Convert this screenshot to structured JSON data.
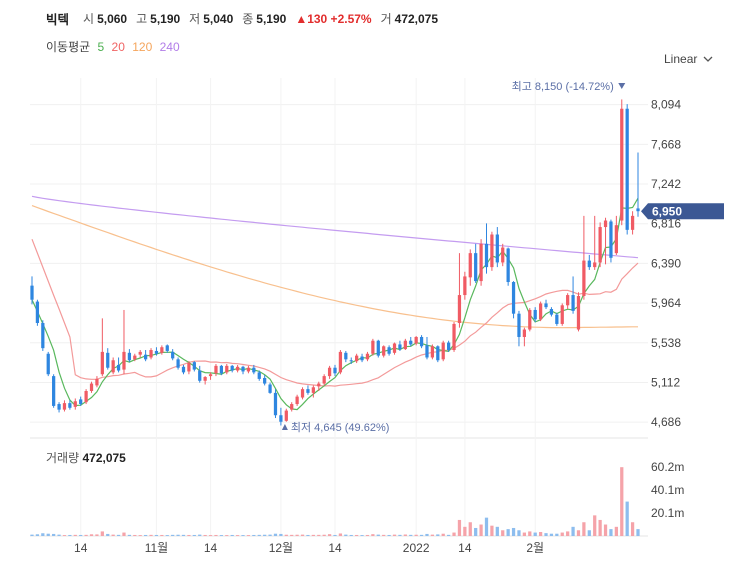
{
  "header": {
    "name": "빅텍",
    "open_label": "시",
    "open": "5,060",
    "high_label": "고",
    "high": "5,190",
    "low_label": "저",
    "low": "5,040",
    "close_label": "종",
    "close": "5,190",
    "change": "▲130 +2.57%",
    "volume_label": "거",
    "volume": "472,075"
  },
  "ma_legend": {
    "title": "이동평균",
    "items": [
      {
        "label": "5",
        "color": "#4caf50"
      },
      {
        "label": "20",
        "color": "#f06464"
      },
      {
        "label": "120",
        "color": "#f5a55c"
      },
      {
        "label": "240",
        "color": "#b27de8"
      }
    ]
  },
  "scale_select": {
    "label": "Linear"
  },
  "colors": {
    "up": "#f05b64",
    "down": "#2e86e0",
    "price_tag": "#3c5894"
  },
  "chart_data": {
    "type": "candlestick",
    "y_ticks": [
      8094,
      7668,
      7242,
      6816,
      6390,
      5964,
      5538,
      5112,
      4686
    ],
    "y_tick_labels": [
      "8,094",
      "7,668",
      "7,242",
      "6,816",
      "6,390",
      "5,964",
      "5,538",
      "5,112",
      "4,686"
    ],
    "ylim": [
      4580,
      8380
    ],
    "x_ticks": [
      {
        "index": 9,
        "label": "14"
      },
      {
        "index": 23,
        "label": "11월"
      },
      {
        "index": 33,
        "label": "14"
      },
      {
        "index": 46,
        "label": "12월"
      },
      {
        "index": 56,
        "label": "14"
      },
      {
        "index": 71,
        "label": "2022"
      },
      {
        "index": 80,
        "label": "14"
      },
      {
        "index": 93,
        "label": "2월"
      }
    ],
    "candles": [
      [
        6151,
        6250,
        5950,
        6000
      ],
      [
        5980,
        6000,
        5720,
        5750
      ],
      [
        5750,
        5780,
        5450,
        5480
      ],
      [
        5420,
        5440,
        5180,
        5200
      ],
      [
        5180,
        5200,
        4840,
        4860
      ],
      [
        4880,
        4900,
        4790,
        4820
      ],
      [
        4820,
        4920,
        4800,
        4890
      ],
      [
        4890,
        4920,
        4820,
        4840
      ],
      [
        4850,
        4940,
        4820,
        4910
      ],
      [
        4930,
        4960,
        4860,
        4880
      ],
      [
        4900,
        5040,
        4880,
        5020
      ],
      [
        5020,
        5120,
        5000,
        5100
      ],
      [
        5080,
        5180,
        5060,
        5150
      ],
      [
        5200,
        5800,
        5180,
        5440
      ],
      [
        5430,
        5480,
        5250,
        5270
      ],
      [
        5220,
        5380,
        5200,
        5350
      ],
      [
        5300,
        5380,
        5220,
        5240
      ],
      [
        5250,
        5890,
        5200,
        5440
      ],
      [
        5430,
        5470,
        5330,
        5350
      ],
      [
        5360,
        5420,
        5340,
        5400
      ],
      [
        5410,
        5460,
        5380,
        5440
      ],
      [
        5410,
        5460,
        5340,
        5360
      ],
      [
        5380,
        5480,
        5360,
        5460
      ],
      [
        5450,
        5490,
        5400,
        5420
      ],
      [
        5430,
        5510,
        5410,
        5490
      ],
      [
        5510,
        5520,
        5430,
        5450
      ],
      [
        5440,
        5470,
        5350,
        5370
      ],
      [
        5360,
        5380,
        5250,
        5270
      ],
      [
        5280,
        5300,
        5200,
        5220
      ],
      [
        5230,
        5340,
        5200,
        5320
      ],
      [
        5330,
        5340,
        5230,
        5250
      ],
      [
        5240,
        5290,
        5110,
        5130
      ],
      [
        5130,
        5180,
        5090,
        5170
      ],
      [
        5180,
        5220,
        5140,
        5200
      ],
      [
        5210,
        5310,
        5180,
        5290
      ],
      [
        5290,
        5300,
        5190,
        5210
      ],
      [
        5220,
        5310,
        5200,
        5290
      ],
      [
        5290,
        5300,
        5220,
        5240
      ],
      [
        5240,
        5300,
        5220,
        5280
      ],
      [
        5280,
        5290,
        5200,
        5230
      ],
      [
        5230,
        5290,
        5210,
        5270
      ],
      [
        5270,
        5300,
        5200,
        5220
      ],
      [
        5220,
        5240,
        5130,
        5150
      ],
      [
        5160,
        5190,
        5080,
        5100
      ],
      [
        5090,
        5110,
        4990,
        5000
      ],
      [
        5000,
        5040,
        4730,
        4760
      ],
      [
        4760,
        4840,
        4650,
        4690
      ],
      [
        4700,
        4830,
        4690,
        4810
      ],
      [
        4820,
        4900,
        4800,
        4880
      ],
      [
        4880,
        4980,
        4860,
        4960
      ],
      [
        4950,
        5060,
        4930,
        5040
      ],
      [
        5040,
        5080,
        4980,
        5000
      ],
      [
        5000,
        5080,
        4950,
        5060
      ],
      [
        5070,
        5120,
        5020,
        5100
      ],
      [
        5100,
        5200,
        5080,
        5180
      ],
      [
        5180,
        5290,
        5150,
        5270
      ],
      [
        5270,
        5300,
        5180,
        5210
      ],
      [
        5220,
        5460,
        5200,
        5440
      ],
      [
        5430,
        5450,
        5330,
        5360
      ],
      [
        5350,
        5380,
        5310,
        5340
      ],
      [
        5340,
        5420,
        5320,
        5400
      ],
      [
        5390,
        5420,
        5330,
        5350
      ],
      [
        5360,
        5440,
        5340,
        5420
      ],
      [
        5420,
        5580,
        5400,
        5560
      ],
      [
        5560,
        5570,
        5380,
        5400
      ],
      [
        5400,
        5510,
        5380,
        5500
      ],
      [
        5490,
        5510,
        5400,
        5420
      ],
      [
        5430,
        5540,
        5410,
        5530
      ],
      [
        5520,
        5560,
        5450,
        5470
      ],
      [
        5470,
        5580,
        5460,
        5560
      ],
      [
        5560,
        5600,
        5500,
        5520
      ],
      [
        5530,
        5610,
        5510,
        5600
      ],
      [
        5600,
        5620,
        5480,
        5500
      ],
      [
        5510,
        5600,
        5360,
        5380
      ],
      [
        5380,
        5520,
        5360,
        5500
      ],
      [
        5500,
        5510,
        5330,
        5350
      ],
      [
        5360,
        5560,
        5340,
        5540
      ],
      [
        5540,
        5560,
        5440,
        5460
      ],
      [
        5460,
        5760,
        5440,
        5740
      ],
      [
        5750,
        6500,
        5700,
        6050
      ],
      [
        6050,
        6300,
        6000,
        6250
      ],
      [
        6240,
        6540,
        6150,
        6500
      ],
      [
        6500,
        6600,
        6180,
        6200
      ],
      [
        6200,
        6650,
        6150,
        6600
      ],
      [
        6600,
        6820,
        6280,
        6350
      ],
      [
        6350,
        6730,
        6310,
        6700
      ],
      [
        6700,
        6780,
        6350,
        6400
      ],
      [
        6400,
        6600,
        6360,
        6560
      ],
      [
        6550,
        6560,
        6150,
        6190
      ],
      [
        6190,
        6200,
        5800,
        5850
      ],
      [
        5850,
        5880,
        5500,
        5600
      ],
      [
        5600,
        5700,
        5500,
        5680
      ],
      [
        5680,
        5910,
        5660,
        5890
      ],
      [
        5890,
        5920,
        5760,
        5790
      ],
      [
        5790,
        5980,
        5770,
        5960
      ],
      [
        5960,
        6000,
        5900,
        5920
      ],
      [
        5900,
        5920,
        5820,
        5840
      ],
      [
        5840,
        5860,
        5720,
        5740
      ],
      [
        5740,
        5960,
        5720,
        5940
      ],
      [
        5940,
        6070,
        5900,
        6050
      ],
      [
        6050,
        6250,
        5850,
        5880
      ],
      [
        5680,
        6080,
        5660,
        6040
      ],
      [
        6040,
        6900,
        6000,
        6420
      ],
      [
        6420,
        6480,
        6320,
        6350
      ],
      [
        6350,
        6900,
        6320,
        6400
      ],
      [
        6400,
        6830,
        6350,
        6780
      ],
      [
        6780,
        6880,
        6380,
        6850
      ],
      [
        6840,
        6860,
        6400,
        6450
      ],
      [
        6500,
        6900,
        6480,
        6800
      ],
      [
        6850,
        8150,
        6800,
        8050
      ],
      [
        8050,
        8100,
        6700,
        6750
      ],
      [
        6750,
        6950,
        6700,
        6900
      ],
      [
        6980,
        7580,
        6890,
        6950
      ]
    ],
    "ma_end_values": {
      "5": 6950,
      "20": 6350,
      "120": 5710,
      "240": 6451
    },
    "marker_high": {
      "index": 109,
      "value": 8150,
      "label": "최고 8,150 (-14.72%)"
    },
    "marker_low": {
      "index": 46,
      "value": 4645,
      "label": "최저 4,645 (49.62%)"
    },
    "current": {
      "value": 6950,
      "label": "6,950"
    },
    "volume": {
      "label": "거래량",
      "value": "472,075",
      "y_ticks": [
        60.2,
        40.1,
        20.1
      ],
      "y_tick_labels": [
        "60.2m",
        "40.1m",
        "20.1m"
      ],
      "ylim": [
        0,
        68
      ],
      "values": [
        1.2,
        1.5,
        2.4,
        2.0,
        1.8,
        1.2,
        0.8,
        0.9,
        1.0,
        0.9,
        1.0,
        1.5,
        1.4,
        4.0,
        1.8,
        1.2,
        1.0,
        3.0,
        1.0,
        0.9,
        0.8,
        0.9,
        1.0,
        0.9,
        0.9,
        0.8,
        1.0,
        1.1,
        1.0,
        0.9,
        0.9,
        1.2,
        0.9,
        0.8,
        0.9,
        0.8,
        0.8,
        0.9,
        0.8,
        0.8,
        0.8,
        0.9,
        1.0,
        1.1,
        1.2,
        2.0,
        1.8,
        1.1,
        1.0,
        1.1,
        1.2,
        0.9,
        1.0,
        1.0,
        1.1,
        1.6,
        0.9,
        2.2,
        1.2,
        0.9,
        0.9,
        0.8,
        0.9,
        1.6,
        1.2,
        1.0,
        0.9,
        1.2,
        1.0,
        1.3,
        1.0,
        1.1,
        1.0,
        1.8,
        1.2,
        1.4,
        2.0,
        1.0,
        3.0,
        14.0,
        8.0,
        12.0,
        7.0,
        10.0,
        16.0,
        9.0,
        8.0,
        5.0,
        6.0,
        7.0,
        5.0,
        3.0,
        4.0,
        3.0,
        3.5,
        2.5,
        2.0,
        2.0,
        3.0,
        4.0,
        8.0,
        5.0,
        12.0,
        5.0,
        18.0,
        14.0,
        10.0,
        6.0,
        8.0,
        60.0,
        30.0,
        12.0,
        6.0
      ]
    }
  }
}
